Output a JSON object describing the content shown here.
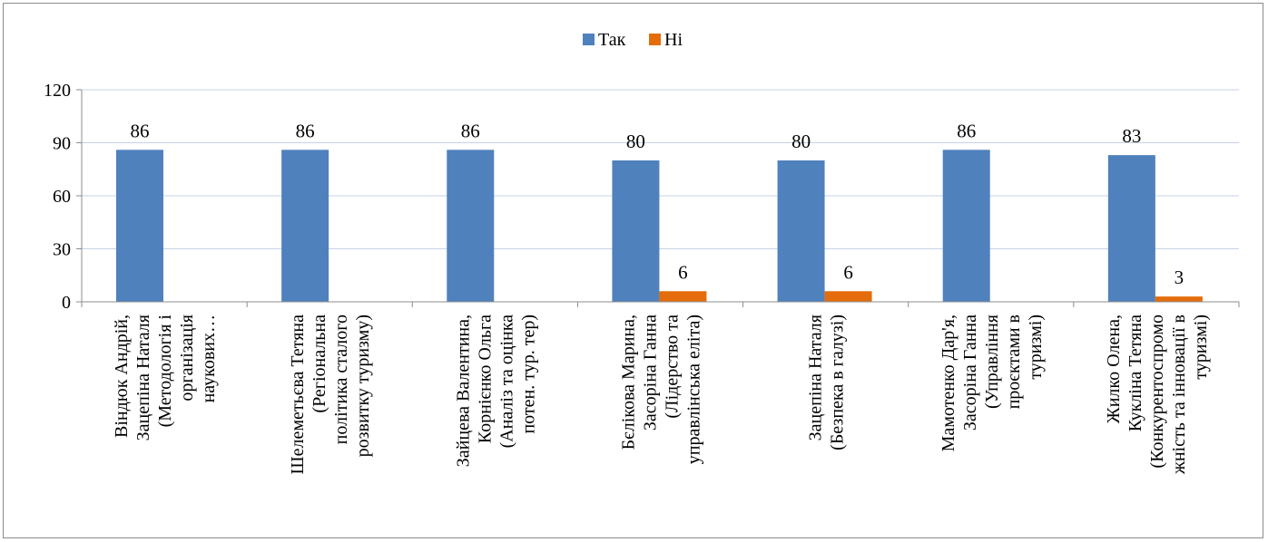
{
  "chart_data": {
    "type": "bar",
    "categories": [
      [
        "Віндюк Андрій,",
        "Зацепіна Наталя",
        "(Методологія і",
        "організація",
        "наукових…"
      ],
      [
        "Шелеметьєва Тетяна",
        "(Регіональна",
        "політика сталого",
        "розвитку туризму)"
      ],
      [
        "Зайцева Валентина,",
        "Корнієнко Ольга",
        "(Аналіз та оцінка",
        "потен. тур. тер)"
      ],
      [
        "Бєлікова Марина,",
        "Засоріна Ганна",
        "(Лідерство та",
        "управлінська еліта)"
      ],
      [
        "Зацепіна Наталя",
        "(Безпека в галузі)"
      ],
      [
        "Мамотенко Дар'я,",
        "Засоріна Ганна",
        "(Управління",
        "проєктами в",
        "туризмі)"
      ],
      [
        "Жилко Олена,",
        "Кукліна Тетяна",
        "(Конкурентоспромо",
        "жність та інновації в",
        "туризмі)"
      ]
    ],
    "series": [
      {
        "name": "Так",
        "color": "#4f81bd",
        "values": [
          86,
          86,
          86,
          80,
          80,
          86,
          83
        ],
        "labels": [
          "86",
          "86",
          "86",
          "80",
          "80",
          "86",
          "83"
        ]
      },
      {
        "name": "Ні",
        "color": "#e46c0a",
        "values": [
          0,
          0,
          0,
          6,
          6,
          0,
          3
        ],
        "labels": [
          "",
          "",
          "",
          "6",
          "6",
          "",
          "3"
        ]
      }
    ],
    "y_ticks": [
      "0",
      "30",
      "60",
      "90",
      "120"
    ],
    "ylim": [
      0,
      120
    ],
    "grid": true,
    "legend_position": "top-center",
    "title": "",
    "xlabel": "",
    "ylabel": ""
  }
}
